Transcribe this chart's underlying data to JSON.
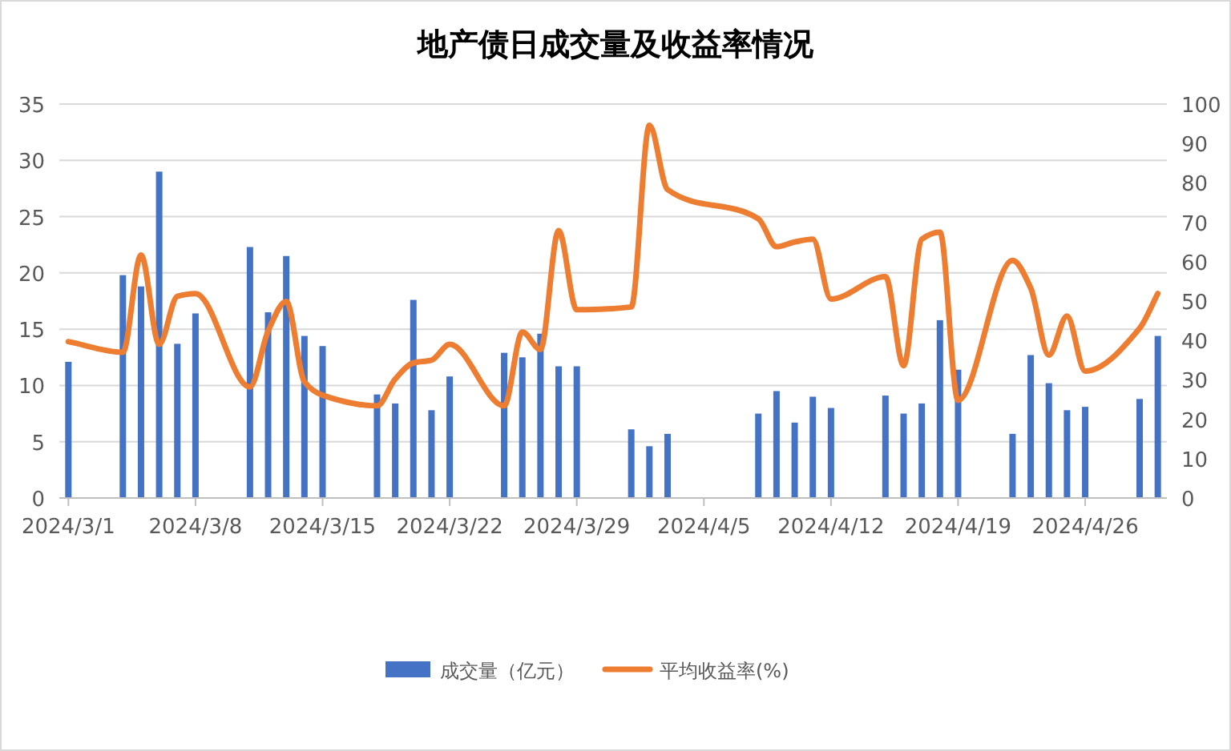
{
  "chart_data": {
    "type": "bar",
    "title": "地产债日成交量及收益率情况",
    "x": [
      "2024-03-01",
      "2024-03-04",
      "2024-03-05",
      "2024-03-06",
      "2024-03-07",
      "2024-03-08",
      "2024-03-11",
      "2024-03-12",
      "2024-03-13",
      "2024-03-14",
      "2024-03-15",
      "2024-03-18",
      "2024-03-19",
      "2024-03-20",
      "2024-03-21",
      "2024-03-22",
      "2024-03-25",
      "2024-03-26",
      "2024-03-27",
      "2024-03-28",
      "2024-03-29",
      "2024-04-01",
      "2024-04-02",
      "2024-04-03",
      "2024-04-08",
      "2024-04-09",
      "2024-04-10",
      "2024-04-11",
      "2024-04-12",
      "2024-04-15",
      "2024-04-16",
      "2024-04-17",
      "2024-04-18",
      "2024-04-19",
      "2024-04-22",
      "2024-04-23",
      "2024-04-24",
      "2024-04-25",
      "2024-04-26",
      "2024-04-29",
      "2024-04-30"
    ],
    "series": [
      {
        "name": "成交量（亿元）",
        "color": "#4472c4",
        "values": [
          12.1,
          19.8,
          18.8,
          29.0,
          13.7,
          16.4,
          22.3,
          16.5,
          21.5,
          14.4,
          13.5,
          9.2,
          8.4,
          17.6,
          7.8,
          10.8,
          12.9,
          12.5,
          14.6,
          11.7,
          11.7,
          6.1,
          4.6,
          5.7,
          7.5,
          9.5,
          6.7,
          9.0,
          8.0,
          9.1,
          7.5,
          8.4,
          15.8,
          11.4,
          5.7,
          12.7,
          10.2,
          7.8,
          8.1,
          8.8,
          14.4
        ]
      },
      {
        "name": "平均收益率(%)",
        "type": "line",
        "axis": "y2",
        "color": "#ed7d31",
        "values": [
          39.7,
          37.0,
          61.7,
          39.0,
          51.2,
          51.9,
          28.2,
          42.4,
          49.9,
          29.5,
          26.1,
          23.4,
          30.2,
          34.3,
          35.0,
          39.0,
          23.4,
          42.1,
          37.7,
          67.9,
          47.8,
          48.5,
          94.6,
          78.3,
          70.9,
          63.8,
          65.0,
          65.7,
          50.5,
          56.2,
          33.6,
          65.7,
          67.5,
          24.8,
          60.3,
          53.3,
          36.3,
          46.2,
          32.2,
          43.1,
          51.9
        ]
      }
    ],
    "xlim": [
      "2024-02-29T12:00",
      "2024-04-30T12:00"
    ],
    "xticks": [
      {
        "value": "2024-03-01",
        "label": "2024/3/1"
      },
      {
        "value": "2024-03-08",
        "label": "2024/3/8"
      },
      {
        "value": "2024-03-15",
        "label": "2024/3/15"
      },
      {
        "value": "2024-03-22",
        "label": "2024/3/22"
      },
      {
        "value": "2024-03-29",
        "label": "2024/3/29"
      },
      {
        "value": "2024-04-05",
        "label": "2024/4/5"
      },
      {
        "value": "2024-04-12",
        "label": "2024/4/12"
      },
      {
        "value": "2024-04-19",
        "label": "2024/4/19"
      },
      {
        "value": "2024-04-26",
        "label": "2024/4/26"
      }
    ],
    "ylim": [
      0,
      35
    ],
    "yticks": [
      0,
      5,
      10,
      15,
      20,
      25,
      30,
      35
    ],
    "y2lim": [
      0,
      100
    ],
    "y2ticks": [
      0,
      10,
      20,
      30,
      40,
      50,
      60,
      70,
      80,
      90,
      100
    ],
    "grid": "y",
    "legend": "bottom",
    "marker": "none",
    "line_style": "solid"
  }
}
